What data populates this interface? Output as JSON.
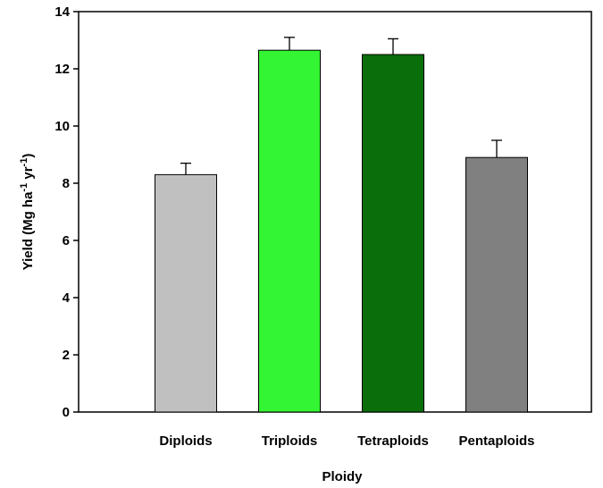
{
  "chart_data": {
    "type": "bar",
    "xlabel": "Ploidy",
    "ylabel": [
      "Yield (Mg ha",
      "-1",
      " yr",
      "-1",
      ")"
    ],
    "categories": [
      "Diploids",
      "Triploids",
      "Tetraploids",
      "Pentaploids"
    ],
    "values": [
      8.3,
      12.65,
      12.5,
      8.9
    ],
    "errors": [
      0.4,
      0.45,
      0.55,
      0.6
    ],
    "colors": [
      "#c0c0c0",
      "#33f533",
      "#0a6e0a",
      "#808080"
    ],
    "ylim": [
      0,
      14
    ],
    "yticks": [
      0,
      2,
      4,
      6,
      8,
      10,
      12,
      14
    ]
  }
}
